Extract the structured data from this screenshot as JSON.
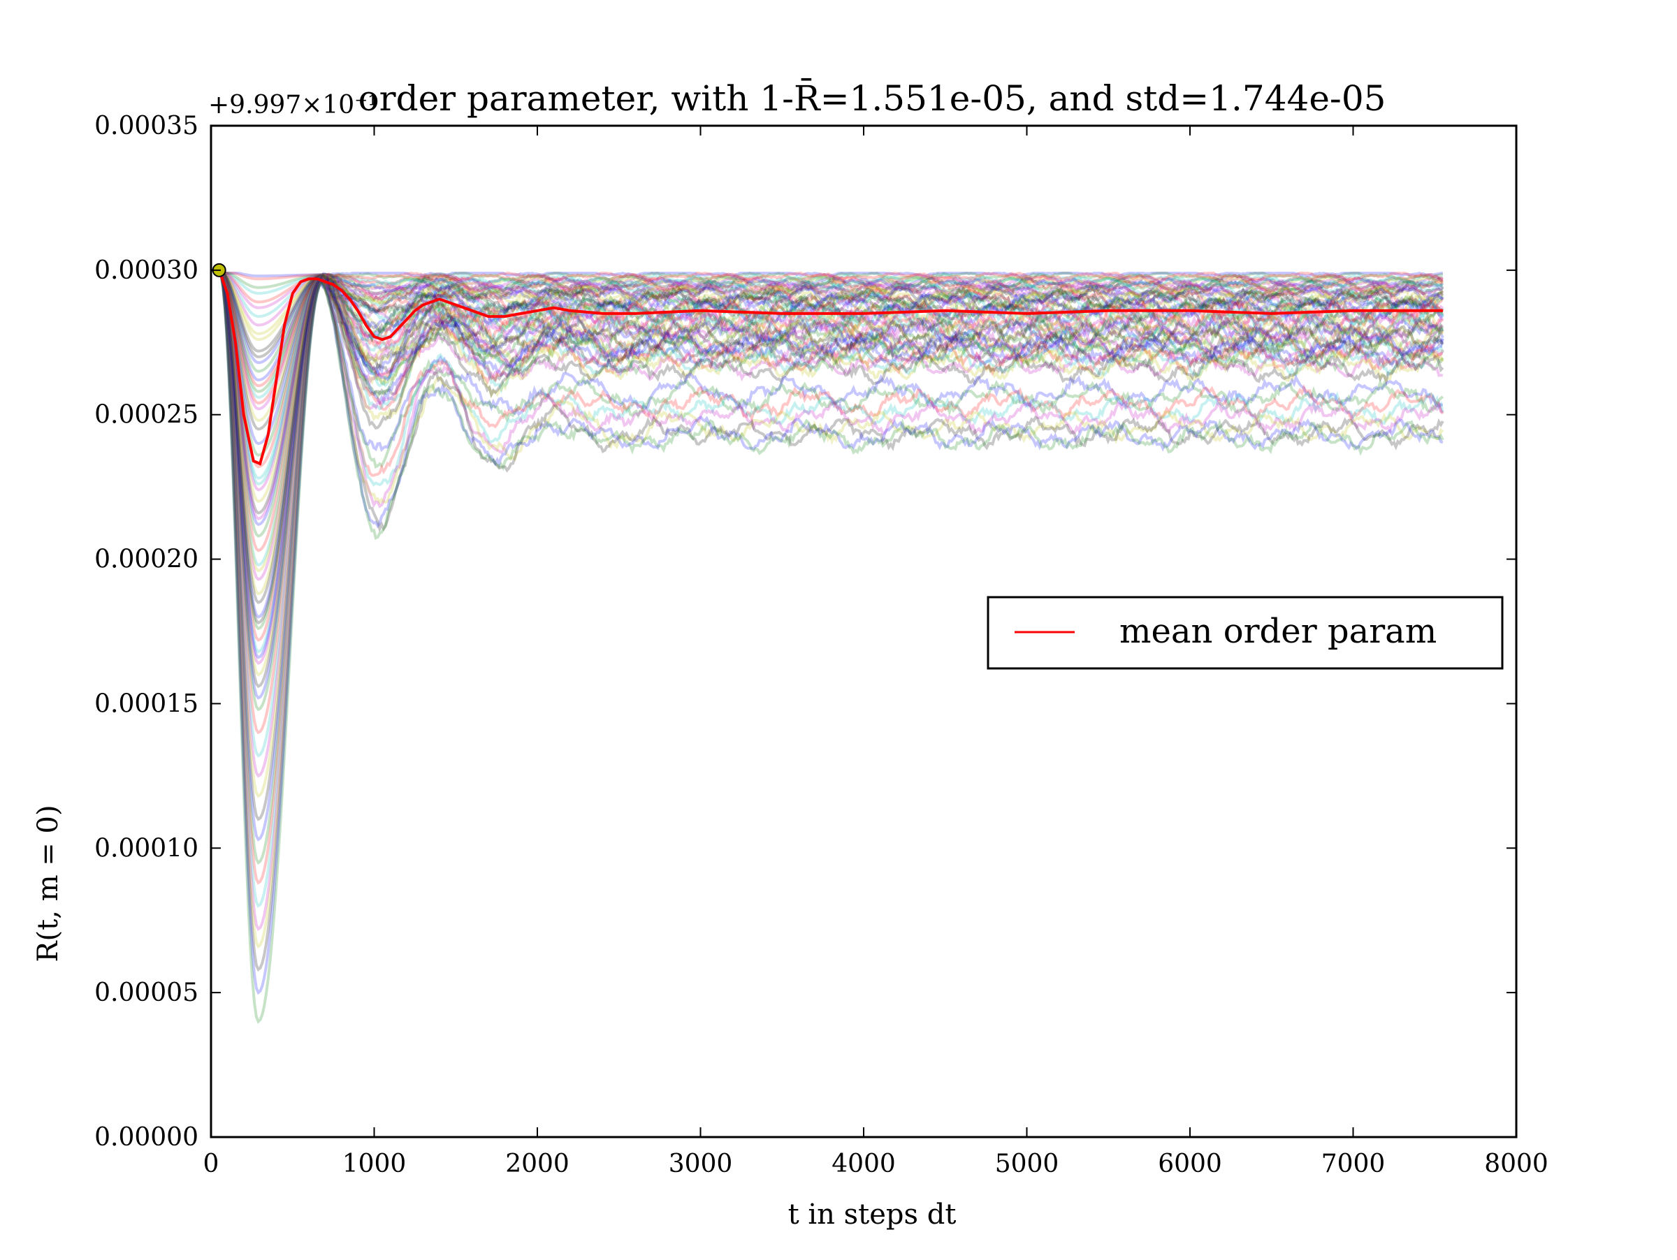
{
  "chart_data": {
    "type": "line",
    "title": "order parameter, with 1-R̄=1.551e-05, and std=1.744e-05",
    "xlabel": "t in steps dt",
    "ylabel": "R(t, m = 0)",
    "y_offset_label": "+9.997×10⁻¹",
    "xlim": [
      0,
      8000
    ],
    "ylim": [
      0,
      0.00035
    ],
    "x_ticks": [
      0,
      1000,
      2000,
      3000,
      4000,
      5000,
      6000,
      7000,
      8000
    ],
    "x_tick_labels": [
      "0",
      "1000",
      "2000",
      "3000",
      "4000",
      "5000",
      "6000",
      "7000",
      "8000"
    ],
    "y_ticks": [
      0,
      5e-05,
      0.0001,
      0.00015,
      0.0002,
      0.00025,
      0.0003,
      0.00035
    ],
    "y_tick_labels": [
      "0.00000",
      "0.00005",
      "0.00010",
      "0.00015",
      "0.00020",
      "0.00025",
      "0.00030",
      "0.00035"
    ],
    "grid": false,
    "legend": {
      "placement": "center-right",
      "entries": [
        "mean order param"
      ]
    },
    "mean_series": {
      "name": "mean order param",
      "color": "#ff0000",
      "x": [
        50,
        100,
        150,
        200,
        260,
        300,
        350,
        400,
        450,
        500,
        550,
        600,
        650,
        700,
        750,
        800,
        850,
        900,
        950,
        1000,
        1050,
        1100,
        1150,
        1200,
        1250,
        1300,
        1350,
        1400,
        1450,
        1500,
        1600,
        1700,
        1800,
        1900,
        2000,
        2100,
        2200,
        2400,
        2600,
        3000,
        3500,
        4000,
        4500,
        5000,
        5500,
        6000,
        6500,
        7000,
        7550
      ],
      "values": [
        0.0003,
        0.000292,
        0.000275,
        0.00025,
        0.000234,
        0.000233,
        0.000243,
        0.000262,
        0.000281,
        0.000292,
        0.000296,
        0.000297,
        0.000297,
        0.000296,
        0.000295,
        0.000293,
        0.00029,
        0.000286,
        0.000281,
        0.000277,
        0.000276,
        0.000277,
        0.00028,
        0.000283,
        0.000286,
        0.000288,
        0.000289,
        0.00029,
        0.000289,
        0.000288,
        0.000286,
        0.000284,
        0.000284,
        0.000285,
        0.000286,
        0.000287,
        0.000286,
        0.000285,
        0.000285,
        0.000286,
        0.000285,
        0.000285,
        0.000286,
        0.000285,
        0.000286,
        0.000286,
        0.000285,
        0.000286,
        0.000286
      ]
    },
    "start_marker": {
      "x": 50,
      "y": 0.0003,
      "color": "#bfbf00"
    },
    "trajectories": {
      "count": 64,
      "alpha": 0.22,
      "x_end": 7550,
      "colors": [
        "#0000ff",
        "#008000",
        "#ff0000",
        "#00bfbf",
        "#bf00bf",
        "#bfbf00",
        "#000000"
      ],
      "first_minimum": [
        0.000298,
        0.000294,
        0.000289,
        0.000284,
        0.000281,
        0.000278,
        0.000272,
        0.000268,
        0.000265,
        0.00026,
        0.000256,
        0.000252,
        0.000248,
        0.000245,
        0.00024,
        0.000236,
        0.000232,
        0.000228,
        0.000224,
        0.00022,
        0.000216,
        0.000212,
        0.000208,
        0.000203,
        0.000198,
        0.000193,
        0.000188,
        0.000185,
        0.00018,
        0.000176,
        0.000172,
        0.000168,
        0.000164,
        0.00016,
        0.000156,
        0.000152,
        0.000148,
        0.00014,
        0.000132,
        0.000125,
        0.000118,
        0.00011,
        0.000103,
        9.5e-05,
        8.8e-05,
        8e-05,
        7.2e-05,
        6.6e-05,
        5.8e-05,
        5e-05,
        4e-05,
        0.000297,
        0.000292,
        0.000287,
        0.000276,
        0.00027,
        0.000262,
        0.000258,
        0.000254,
        0.000226,
        0.000214,
        0.000196,
        0.000178,
        0.000166
      ],
      "plateau": [
        0.000299,
        0.000298,
        0.000297,
        0.000297,
        0.000296,
        0.000296,
        0.000295,
        0.000295,
        0.000294,
        0.000294,
        0.000293,
        0.000293,
        0.000292,
        0.000292,
        0.000291,
        0.00029,
        0.00029,
        0.000289,
        0.000288,
        0.000288,
        0.000287,
        0.000286,
        0.000285,
        0.000284,
        0.000283,
        0.000282,
        0.00028,
        0.000279,
        0.000278,
        0.000277,
        0.000276,
        0.000275,
        0.000274,
        0.000273,
        0.000272,
        0.000272,
        0.000271,
        0.00027,
        0.000269,
        0.000268,
        0.000267,
        0.000266,
        0.000258,
        0.000256,
        0.000254,
        0.000252,
        0.000249,
        0.000246,
        0.000244,
        0.000243,
        0.000242,
        0.000298,
        0.000296,
        0.000294,
        0.000292,
        0.00029,
        0.000288,
        0.000286,
        0.000284,
        0.000283,
        0.000281,
        0.000279,
        0.000277,
        0.000275
      ]
    }
  }
}
